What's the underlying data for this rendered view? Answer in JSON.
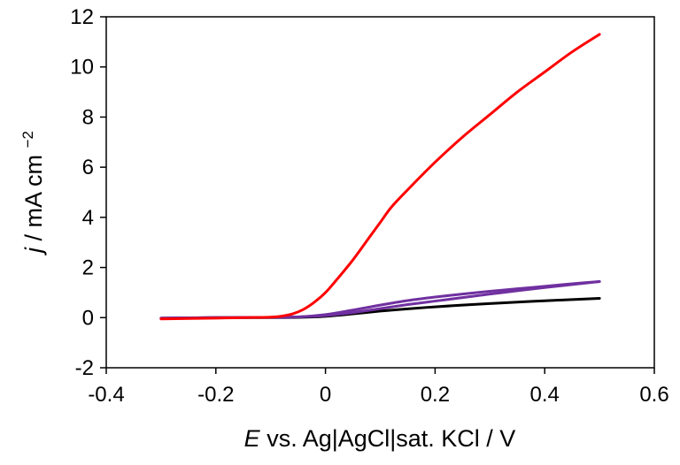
{
  "chart_data": {
    "type": "line",
    "title": "",
    "xlabel": {
      "italic": "E",
      "rest": "vs. Ag|AgCl|sat. KCl / V"
    },
    "ylabel": {
      "italic": "j",
      "rest": "/ mA cm",
      "sup": "−2"
    },
    "xlim": [
      -0.4,
      0.6
    ],
    "ylim": [
      -2,
      12
    ],
    "xticks": [
      -0.4,
      -0.2,
      0,
      0.2,
      0.4,
      0.6
    ],
    "yticks": [
      -2,
      0,
      2,
      4,
      6,
      8,
      10,
      12
    ],
    "xtick_labels": [
      "-0.4",
      "-0.2",
      "0",
      "0.2",
      "0.4",
      "0.6"
    ],
    "ytick_labels": [
      "-2",
      "0",
      "2",
      "4",
      "6",
      "8",
      "10",
      "12"
    ],
    "grid": false,
    "series": [
      {
        "name": "black",
        "color": "#000000",
        "x": [
          -0.3,
          -0.2,
          -0.1,
          -0.05,
          0.0,
          0.05,
          0.1,
          0.15,
          0.2,
          0.25,
          0.3,
          0.35,
          0.4,
          0.45,
          0.5
        ],
        "y": [
          -0.02,
          0.0,
          0.0,
          0.01,
          0.05,
          0.15,
          0.26,
          0.35,
          0.43,
          0.5,
          0.56,
          0.62,
          0.67,
          0.72,
          0.77
        ]
      },
      {
        "name": "purple-1",
        "color": "#7030a0",
        "x": [
          -0.3,
          -0.2,
          -0.1,
          -0.05,
          0.0,
          0.05,
          0.1,
          0.15,
          0.2,
          0.25,
          0.3,
          0.35,
          0.4,
          0.45,
          0.5
        ],
        "y": [
          -0.02,
          0.0,
          0.01,
          0.03,
          0.12,
          0.3,
          0.5,
          0.68,
          0.82,
          0.94,
          1.05,
          1.15,
          1.25,
          1.35,
          1.44
        ]
      },
      {
        "name": "purple-2",
        "color": "#7030a0",
        "x": [
          -0.3,
          -0.2,
          -0.1,
          -0.05,
          0.0,
          0.05,
          0.1,
          0.15,
          0.2,
          0.25,
          0.3,
          0.35,
          0.4,
          0.45,
          0.5
        ],
        "y": [
          -0.02,
          0.0,
          0.01,
          0.03,
          0.08,
          0.2,
          0.36,
          0.52,
          0.66,
          0.8,
          0.94,
          1.07,
          1.2,
          1.32,
          1.44
        ]
      },
      {
        "name": "red",
        "color": "#ff0000",
        "x": [
          -0.3,
          -0.2,
          -0.15,
          -0.1,
          -0.08,
          -0.06,
          -0.04,
          -0.02,
          0.0,
          0.02,
          0.05,
          0.08,
          0.1,
          0.12,
          0.15,
          0.2,
          0.25,
          0.3,
          0.35,
          0.4,
          0.45,
          0.5
        ],
        "y": [
          -0.05,
          -0.02,
          0.0,
          0.02,
          0.06,
          0.15,
          0.33,
          0.62,
          1.0,
          1.5,
          2.3,
          3.2,
          3.8,
          4.4,
          5.1,
          6.2,
          7.2,
          8.1,
          9.0,
          9.8,
          10.6,
          11.3
        ]
      }
    ]
  }
}
